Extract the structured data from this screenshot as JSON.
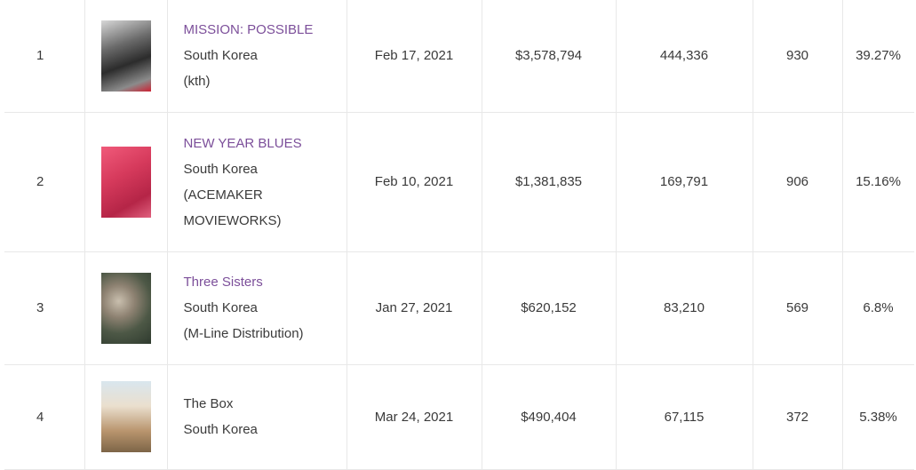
{
  "rows": [
    {
      "rank": "1",
      "poster": "mission-possible-poster",
      "title": "MISSION: POSSIBLE",
      "country": "South Korea",
      "distributor": "(kth)",
      "release_date": "Feb 17, 2021",
      "gross": "$3,578,794",
      "admissions": "444,336",
      "screens": "930",
      "share": "39.27%"
    },
    {
      "rank": "2",
      "poster": "new-year-blues-poster",
      "title": "NEW YEAR BLUES",
      "country": "South Korea",
      "distributor_line1": "(ACEMAKER",
      "distributor_line2": "MOVIEWORKS)",
      "release_date": "Feb 10, 2021",
      "gross": "$1,381,835",
      "admissions": "169,791",
      "screens": "906",
      "share": "15.16%"
    },
    {
      "rank": "3",
      "poster": "three-sisters-poster",
      "title": "Three Sisters",
      "country": "South Korea",
      "distributor": "(M-Line Distribution)",
      "release_date": "Jan 27, 2021",
      "gross": "$620,152",
      "admissions": "83,210",
      "screens": "569",
      "share": "6.8%"
    },
    {
      "rank": "4",
      "poster": "the-box-poster",
      "title": "The Box",
      "country": "South Korea",
      "release_date": "Mar 24, 2021",
      "gross": "$490,404",
      "admissions": "67,115",
      "screens": "372",
      "share": "5.38%"
    }
  ],
  "colors": {
    "title_link": "#7c4f9a",
    "text": "#3a3a3a",
    "border": "#e8e8e8"
  }
}
